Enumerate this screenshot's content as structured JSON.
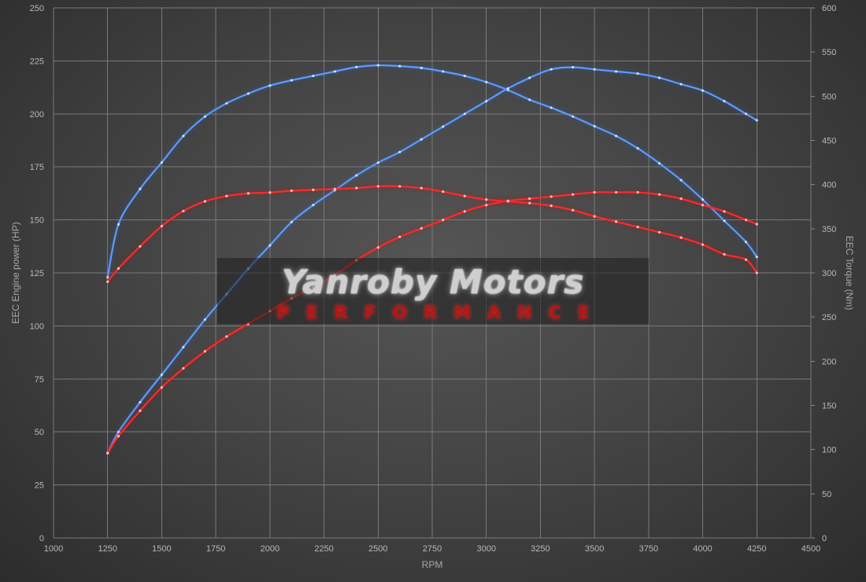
{
  "watermark": {
    "name": "Yanroby Motors",
    "tagline": "PERFORMANCE"
  },
  "colors": {
    "blue": "#5b9bff",
    "blue_glow": "#2f6fe0",
    "red": "#ff2a2a",
    "red_glow": "#d01010"
  },
  "chart_data": {
    "type": "line",
    "title": "",
    "xlabel": "RPM",
    "ylabel_left": "EEC Engine power (HP)",
    "ylabel_right": "EEC Torque (Nm)",
    "xlim": [
      1000,
      4500
    ],
    "ylim_left": [
      0,
      250
    ],
    "ylim_right": [
      0,
      600
    ],
    "xticks": [
      1000,
      1250,
      1500,
      1750,
      2000,
      2250,
      2500,
      2750,
      3000,
      3250,
      3500,
      3750,
      4000,
      4250,
      4500
    ],
    "yticks_left": [
      0,
      25,
      50,
      75,
      100,
      125,
      150,
      175,
      200,
      225,
      250
    ],
    "yticks_right": [
      0,
      50,
      100,
      150,
      200,
      250,
      300,
      350,
      400,
      450,
      500,
      550,
      600
    ],
    "grid": true,
    "series": [
      {
        "color": "blue",
        "axis": "right",
        "x": [
          1250,
          1300,
          1400,
          1500,
          1600,
          1700,
          1800,
          1900,
          2000,
          2100,
          2200,
          2300,
          2400,
          2500,
          2600,
          2700,
          2800,
          2900,
          3000,
          3100,
          3200,
          3300,
          3400,
          3500,
          3600,
          3700,
          3800,
          3900,
          4000,
          4100,
          4200,
          4250
        ],
        "y": [
          295,
          355,
          395,
          425,
          455,
          477,
          492,
          503,
          512,
          518,
          523,
          528,
          533,
          535,
          534,
          532,
          528,
          523,
          516,
          507,
          496,
          487,
          477,
          466,
          455,
          441,
          424,
          405,
          383,
          359,
          335,
          318
        ]
      },
      {
        "color": "blue",
        "axis": "left",
        "x": [
          1250,
          1300,
          1400,
          1500,
          1600,
          1700,
          1800,
          1900,
          2000,
          2100,
          2200,
          2300,
          2400,
          2500,
          2600,
          2700,
          2800,
          2900,
          3000,
          3100,
          3200,
          3300,
          3400,
          3500,
          3600,
          3700,
          3800,
          3900,
          4000,
          4100,
          4200,
          4250
        ],
        "y": [
          40,
          50,
          64,
          77,
          90,
          103,
          115,
          127,
          138,
          149,
          157,
          164,
          171,
          177,
          182,
          188,
          194,
          200,
          206,
          212,
          217,
          221,
          222,
          221,
          220,
          219,
          217,
          214,
          211,
          206,
          200,
          197
        ]
      },
      {
        "color": "red",
        "axis": "right",
        "x": [
          1250,
          1300,
          1400,
          1500,
          1600,
          1700,
          1800,
          1900,
          2000,
          2100,
          2200,
          2300,
          2400,
          2500,
          2600,
          2700,
          2800,
          2900,
          3000,
          3100,
          3200,
          3300,
          3400,
          3500,
          3600,
          3700,
          3800,
          3900,
          4000,
          4100,
          4200,
          4250
        ],
        "y": [
          290,
          305,
          330,
          353,
          370,
          381,
          387,
          390,
          391,
          393,
          394,
          395,
          396,
          398,
          398,
          396,
          392,
          387,
          383,
          381,
          379,
          376,
          371,
          364,
          358,
          352,
          346,
          340,
          332,
          321,
          315,
          300
        ]
      },
      {
        "color": "red",
        "axis": "left",
        "x": [
          1250,
          1300,
          1400,
          1500,
          1600,
          1700,
          1800,
          1900,
          2000,
          2100,
          2200,
          2300,
          2400,
          2500,
          2600,
          2700,
          2800,
          2900,
          3000,
          3100,
          3200,
          3300,
          3400,
          3500,
          3600,
          3700,
          3800,
          3900,
          4000,
          4100,
          4200,
          4250
        ],
        "y": [
          40,
          48,
          60,
          71,
          80,
          88,
          95,
          101,
          107,
          113,
          118,
          124,
          131,
          137,
          142,
          146,
          150,
          154,
          157,
          159,
          160,
          161,
          162,
          163,
          163,
          163,
          162,
          160,
          157,
          154,
          150,
          148
        ]
      }
    ]
  }
}
